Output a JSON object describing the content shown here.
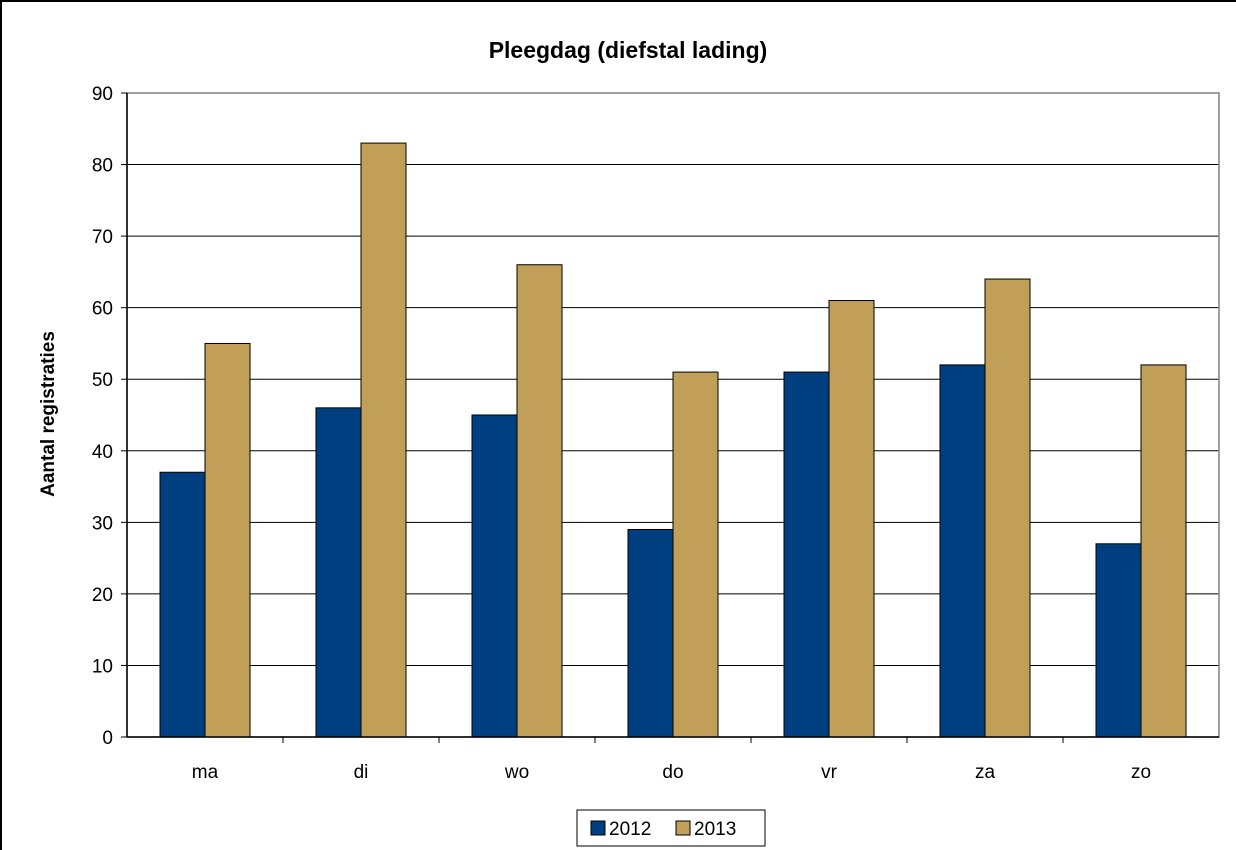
{
  "chart_data": {
    "type": "bar",
    "title": "Pleegdag (diefstal lading)",
    "xlabel": "",
    "ylabel": "Aantal registraties",
    "categories": [
      "ma",
      "di",
      "wo",
      "do",
      "vr",
      "za",
      "zo"
    ],
    "series": [
      {
        "name": "2012",
        "color": "#003f7f",
        "values": [
          37,
          46,
          45,
          29,
          51,
          52,
          27
        ]
      },
      {
        "name": "2013",
        "color": "#c19f58",
        "values": [
          55,
          83,
          66,
          51,
          61,
          64,
          52
        ]
      }
    ],
    "ylim": [
      0,
      90
    ],
    "yticks": [
      "0",
      "10",
      "20",
      "30",
      "40",
      "50",
      "60",
      "70",
      "80",
      "90"
    ],
    "grid": true,
    "legend": "bottom-center"
  }
}
